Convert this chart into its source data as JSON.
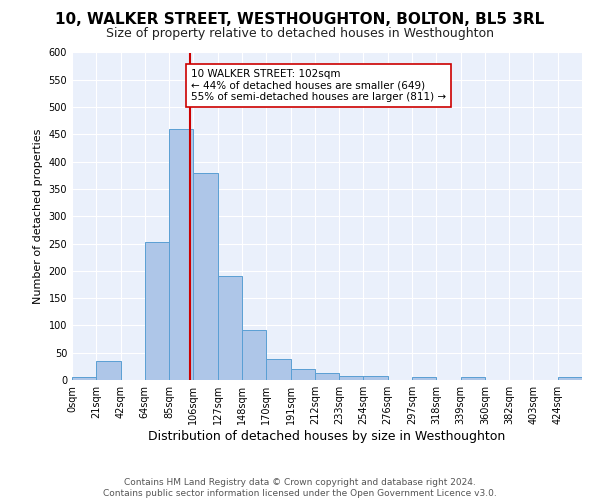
{
  "title": "10, WALKER STREET, WESTHOUGHTON, BOLTON, BL5 3RL",
  "subtitle": "Size of property relative to detached houses in Westhoughton",
  "xlabel": "Distribution of detached houses by size in Westhoughton",
  "ylabel": "Number of detached properties",
  "footer_line1": "Contains HM Land Registry data © Crown copyright and database right 2024.",
  "footer_line2": "Contains public sector information licensed under the Open Government Licence v3.0.",
  "bar_labels": [
    "0sqm",
    "21sqm",
    "42sqm",
    "64sqm",
    "85sqm",
    "106sqm",
    "127sqm",
    "148sqm",
    "170sqm",
    "191sqm",
    "212sqm",
    "233sqm",
    "254sqm",
    "276sqm",
    "297sqm",
    "318sqm",
    "339sqm",
    "360sqm",
    "382sqm",
    "403sqm",
    "424sqm"
  ],
  "bar_values": [
    5,
    35,
    0,
    252,
    460,
    380,
    190,
    92,
    38,
    20,
    13,
    7,
    7,
    0,
    5,
    0,
    5,
    0,
    0,
    0,
    5
  ],
  "bar_color": "#aec6e8",
  "bar_edge_color": "#5a9fd4",
  "annotation_text": "10 WALKER STREET: 102sqm\n← 44% of detached houses are smaller (649)\n55% of semi-detached houses are larger (811) →",
  "vline_color": "#cc0000",
  "annotation_box_color": "#ffffff",
  "annotation_box_edge_color": "#cc0000",
  "ylim": [
    0,
    600
  ],
  "yticks": [
    0,
    50,
    100,
    150,
    200,
    250,
    300,
    350,
    400,
    450,
    500,
    550,
    600
  ],
  "bin_width": 21,
  "property_size": 102,
  "background_color": "#eaf0fb",
  "title_fontsize": 11,
  "subtitle_fontsize": 9,
  "ylabel_fontsize": 8,
  "xlabel_fontsize": 9,
  "tick_fontsize": 7,
  "footer_fontsize": 6.5
}
